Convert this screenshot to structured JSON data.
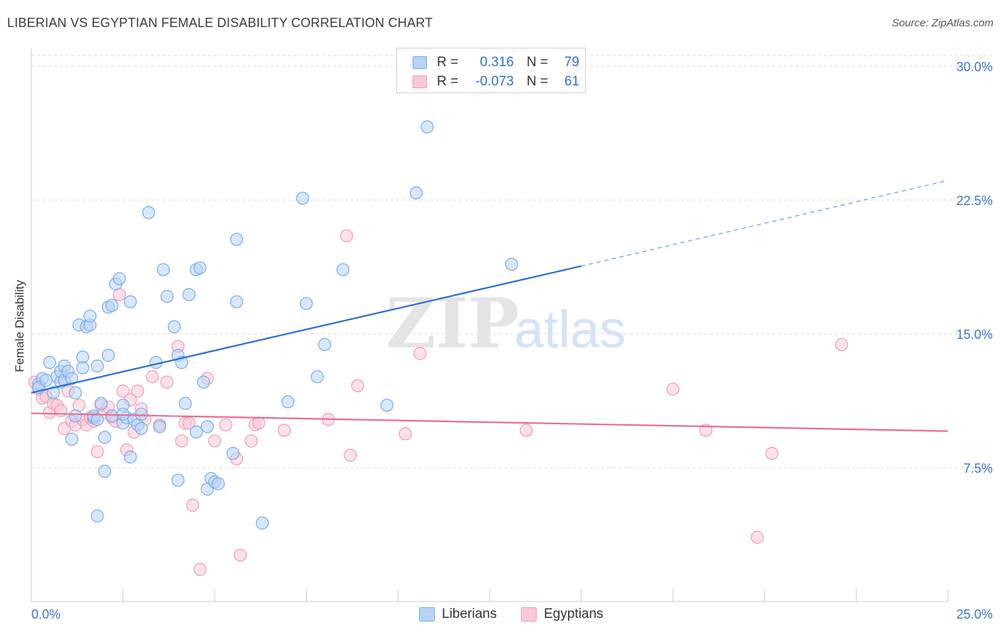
{
  "title": "LIBERIAN VS EGYPTIAN FEMALE DISABILITY CORRELATION CHART",
  "source": "Source: ZipAtlas.com",
  "watermark": {
    "part1": "ZIP",
    "part2": "atlas"
  },
  "legend": {
    "rows": [
      {
        "r_label": "R =",
        "r_value": "0.316",
        "n_label": "N =",
        "n_value": "79"
      },
      {
        "r_label": "R =",
        "r_value": "-0.073",
        "n_label": "N =",
        "n_value": "61"
      }
    ]
  },
  "bottom_legend": {
    "series1": "Liberians",
    "series2": "Egyptians"
  },
  "colors": {
    "blue_fill": "#b7d3f6",
    "blue_stroke": "#7aa9e6",
    "blue_line": "#2b6fd0",
    "pink_fill": "#f9c9d7",
    "pink_stroke": "#ee9ab3",
    "pink_line": "#e56d94",
    "tick_label": "#3a74c9",
    "grid": "#d9d9d9"
  },
  "chart_data": {
    "type": "scatter",
    "title": "LIBERIAN VS EGYPTIAN FEMALE DISABILITY CORRELATION CHART",
    "xlabel": "",
    "ylabel": "Female Disability",
    "xlim": [
      0,
      25
    ],
    "ylim": [
      0,
      31
    ],
    "x_tick_labels": [
      "0.0%",
      "25.0%"
    ],
    "y_ticks": [
      7.5,
      15.0,
      22.5,
      30.0
    ],
    "y_tick_labels": [
      "7.5%",
      "15.0%",
      "22.5%",
      "30.0%"
    ],
    "grid": "horizontal dashed",
    "legend_position": "top-center",
    "series": [
      {
        "name": "Liberians",
        "trend": {
          "x0": 0,
          "y0": 11.7,
          "x1": 15,
          "y1": 18.8,
          "dash_to_x": 25,
          "dash_to_y": 23.6
        },
        "points": [
          [
            0.2,
            12.2
          ],
          [
            0.3,
            12.5
          ],
          [
            0.2,
            12.0
          ],
          [
            0.4,
            12.4
          ],
          [
            0.5,
            13.4
          ],
          [
            0.6,
            11.7
          ],
          [
            0.7,
            12.6
          ],
          [
            0.8,
            12.3
          ],
          [
            0.8,
            12.9
          ],
          [
            0.9,
            13.2
          ],
          [
            0.9,
            12.4
          ],
          [
            1.0,
            12.9
          ],
          [
            1.1,
            12.5
          ],
          [
            1.1,
            9.1
          ],
          [
            1.2,
            10.4
          ],
          [
            1.2,
            11.7
          ],
          [
            1.3,
            15.5
          ],
          [
            1.4,
            13.7
          ],
          [
            1.5,
            15.4
          ],
          [
            1.4,
            13.1
          ],
          [
            1.6,
            15.5
          ],
          [
            1.6,
            16.0
          ],
          [
            1.7,
            10.3
          ],
          [
            1.8,
            13.2
          ],
          [
            1.7,
            10.4
          ],
          [
            1.8,
            10.2
          ],
          [
            1.8,
            4.8
          ],
          [
            1.9,
            11.1
          ],
          [
            2.0,
            7.3
          ],
          [
            2.1,
            13.8
          ],
          [
            2.0,
            9.2
          ],
          [
            2.1,
            16.5
          ],
          [
            2.2,
            16.6
          ],
          [
            2.2,
            10.4
          ],
          [
            2.3,
            17.8
          ],
          [
            2.4,
            18.1
          ],
          [
            2.5,
            11.0
          ],
          [
            2.5,
            10.0
          ],
          [
            2.6,
            10.3
          ],
          [
            2.5,
            10.5
          ],
          [
            2.7,
            16.8
          ],
          [
            2.8,
            10.2
          ],
          [
            2.7,
            8.1
          ],
          [
            2.9,
            9.9
          ],
          [
            3.0,
            10.5
          ],
          [
            3.0,
            9.7
          ],
          [
            3.2,
            21.8
          ],
          [
            3.4,
            13.4
          ],
          [
            3.5,
            9.8
          ],
          [
            3.6,
            18.6
          ],
          [
            3.7,
            17.1
          ],
          [
            3.9,
            15.4
          ],
          [
            4.0,
            6.8
          ],
          [
            4.0,
            13.8
          ],
          [
            4.1,
            13.4
          ],
          [
            4.3,
            17.2
          ],
          [
            4.2,
            11.1
          ],
          [
            4.5,
            9.5
          ],
          [
            4.5,
            18.6
          ],
          [
            4.6,
            18.7
          ],
          [
            4.7,
            12.3
          ],
          [
            4.8,
            9.8
          ],
          [
            4.8,
            6.3
          ],
          [
            4.9,
            6.9
          ],
          [
            5.0,
            6.7
          ],
          [
            5.1,
            6.6
          ],
          [
            5.6,
            20.3
          ],
          [
            5.6,
            16.8
          ],
          [
            5.5,
            8.3
          ],
          [
            6.3,
            4.4
          ],
          [
            7.0,
            11.2
          ],
          [
            7.4,
            22.6
          ],
          [
            7.5,
            16.7
          ],
          [
            7.8,
            12.6
          ],
          [
            8.0,
            14.4
          ],
          [
            8.5,
            18.6
          ],
          [
            9.7,
            11.0
          ],
          [
            10.5,
            22.9
          ],
          [
            10.8,
            26.6
          ],
          [
            13.1,
            18.9
          ]
        ]
      },
      {
        "name": "Egyptians",
        "trend": {
          "x0": 0,
          "y0": 10.55,
          "x1": 25,
          "y1": 9.55
        },
        "points": [
          [
            0.1,
            12.3
          ],
          [
            0.2,
            11.9
          ],
          [
            0.3,
            11.4
          ],
          [
            0.4,
            11.5
          ],
          [
            0.5,
            10.6
          ],
          [
            0.6,
            11.1
          ],
          [
            0.7,
            11.0
          ],
          [
            0.8,
            10.7
          ],
          [
            0.9,
            9.7
          ],
          [
            1.0,
            11.8
          ],
          [
            1.1,
            10.1
          ],
          [
            1.2,
            9.9
          ],
          [
            1.3,
            11.0
          ],
          [
            1.4,
            10.2
          ],
          [
            1.5,
            9.9
          ],
          [
            1.6,
            10.3
          ],
          [
            1.7,
            10.1
          ],
          [
            1.8,
            8.4
          ],
          [
            1.9,
            11.0
          ],
          [
            2.0,
            10.6
          ],
          [
            2.1,
            10.9
          ],
          [
            2.2,
            10.3
          ],
          [
            2.3,
            10.1
          ],
          [
            2.4,
            17.2
          ],
          [
            2.5,
            11.8
          ],
          [
            2.6,
            8.5
          ],
          [
            2.7,
            11.3
          ],
          [
            2.8,
            9.5
          ],
          [
            2.9,
            11.8
          ],
          [
            3.0,
            10.8
          ],
          [
            3.1,
            10.2
          ],
          [
            3.3,
            12.6
          ],
          [
            3.5,
            9.9
          ],
          [
            3.7,
            12.3
          ],
          [
            4.0,
            14.3
          ],
          [
            4.1,
            9.0
          ],
          [
            4.2,
            10.0
          ],
          [
            4.3,
            10.0
          ],
          [
            4.4,
            5.4
          ],
          [
            4.6,
            1.8
          ],
          [
            4.8,
            12.5
          ],
          [
            5.0,
            9.0
          ],
          [
            5.3,
            9.9
          ],
          [
            5.6,
            8.0
          ],
          [
            5.7,
            2.6
          ],
          [
            6.0,
            9.0
          ],
          [
            6.1,
            9.9
          ],
          [
            6.2,
            10.0
          ],
          [
            6.9,
            9.6
          ],
          [
            8.1,
            10.2
          ],
          [
            8.6,
            20.5
          ],
          [
            8.7,
            8.2
          ],
          [
            8.9,
            12.1
          ],
          [
            10.2,
            9.4
          ],
          [
            10.6,
            13.9
          ],
          [
            13.5,
            9.6
          ],
          [
            17.5,
            11.9
          ],
          [
            18.4,
            9.6
          ],
          [
            19.8,
            3.6
          ],
          [
            20.2,
            8.3
          ],
          [
            22.1,
            14.4
          ]
        ]
      }
    ]
  }
}
